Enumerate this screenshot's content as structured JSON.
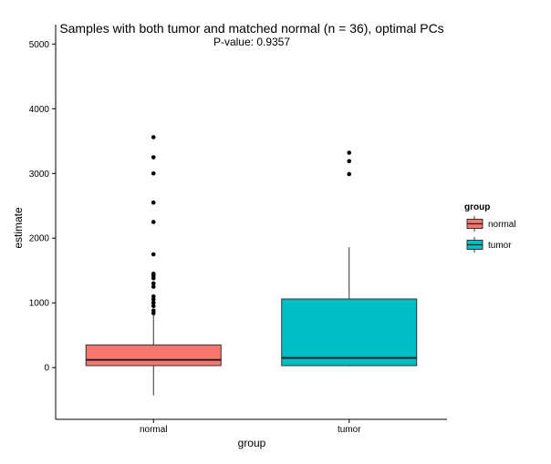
{
  "chart_data": {
    "type": "boxplot",
    "title": "Samples with both tumor and matched normal (n = 36), optimal PCs",
    "subtitle": "P-value: 0.9357",
    "xlabel": "group",
    "ylabel": "estimate",
    "categories": [
      "normal",
      "tumor"
    ],
    "ylim": [
      -800,
      5300
    ],
    "yticks": [
      0,
      1000,
      2000,
      3000,
      4000,
      5000
    ],
    "grid": false,
    "legend": {
      "title": "group",
      "position": "right",
      "entries": [
        {
          "label": "normal",
          "color": "#F8766D"
        },
        {
          "label": "tumor",
          "color": "#00BFC4"
        }
      ]
    },
    "boxes": [
      {
        "group": "normal",
        "color": "#F8766D",
        "whisker_low": -430,
        "q1": 30,
        "median": 120,
        "q3": 350,
        "whisker_high": 820,
        "outliers": [
          3560,
          3250,
          3000,
          2550,
          2250,
          1750,
          1450,
          1420,
          1380,
          1300,
          1250,
          1100,
          1050,
          1000,
          950,
          880,
          840
        ]
      },
      {
        "group": "tumor",
        "color": "#00BFC4",
        "whisker_low": 20,
        "q1": 30,
        "median": 150,
        "q3": 1060,
        "whisker_high": 1860,
        "outliers": [
          3320,
          3190,
          2990
        ]
      }
    ]
  }
}
